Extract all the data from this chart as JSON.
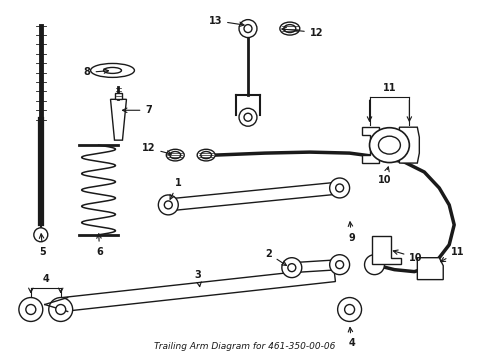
{
  "title": "Trailing Arm Diagram for 461-350-00-06",
  "bg_color": "#ffffff",
  "lc": "#1a1a1a",
  "figsize": [
    4.9,
    3.6
  ],
  "dpi": 100,
  "xlim": [
    0,
    490
  ],
  "ylim": [
    0,
    360
  ]
}
